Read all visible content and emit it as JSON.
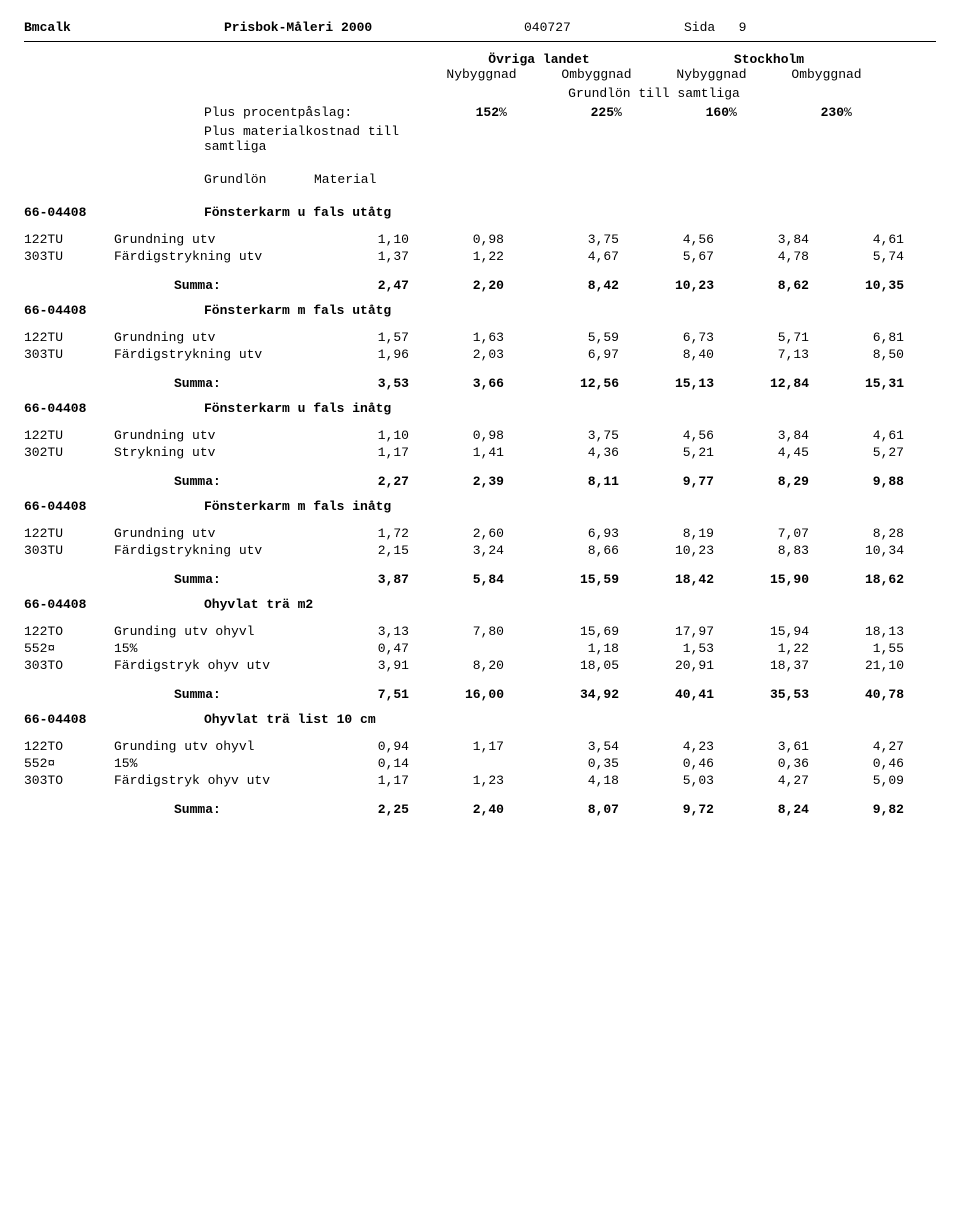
{
  "header": {
    "left": "Bmcalk",
    "center": "Prisbok-Måleri 2000",
    "date": "040727",
    "page_label": "Sida",
    "page_num": "9"
  },
  "subheader": {
    "region_a": "Övriga landet",
    "region_b": "Stockholm",
    "col_ny": "Nybyggnad",
    "col_om": "Ombyggnad",
    "grundlon": "Grundlön till samtliga",
    "perc_label": "Plus procentpåslag:",
    "perc": [
      "152",
      "225",
      "160",
      "230"
    ],
    "perc_sym": "%",
    "material": "Plus materialkostnad till samtliga",
    "gm_g": "Grundlön",
    "gm_m": "Material"
  },
  "sum_label": "Summa:",
  "sections": [
    {
      "code": "66-04408",
      "title": "Fönsterkarm u fals utåtg",
      "rows": [
        {
          "code": "122TU",
          "desc": "Grundning utv",
          "v": [
            "1,10",
            "0,98",
            "3,75",
            "4,56",
            "3,84",
            "4,61"
          ]
        },
        {
          "code": "303TU",
          "desc": "Färdigstrykning utv",
          "v": [
            "1,37",
            "1,22",
            "4,67",
            "5,67",
            "4,78",
            "5,74"
          ]
        }
      ],
      "sum": [
        "2,47",
        "2,20",
        "8,42",
        "10,23",
        "8,62",
        "10,35"
      ]
    },
    {
      "code": "66-04408",
      "title": "Fönsterkarm m fals utåtg",
      "rows": [
        {
          "code": "122TU",
          "desc": "Grundning utv",
          "v": [
            "1,57",
            "1,63",
            "5,59",
            "6,73",
            "5,71",
            "6,81"
          ]
        },
        {
          "code": "303TU",
          "desc": "Färdigstrykning utv",
          "v": [
            "1,96",
            "2,03",
            "6,97",
            "8,40",
            "7,13",
            "8,50"
          ]
        }
      ],
      "sum": [
        "3,53",
        "3,66",
        "12,56",
        "15,13",
        "12,84",
        "15,31"
      ]
    },
    {
      "code": "66-04408",
      "title": "Fönsterkarm u fals inåtg",
      "rows": [
        {
          "code": "122TU",
          "desc": "Grundning utv",
          "v": [
            "1,10",
            "0,98",
            "3,75",
            "4,56",
            "3,84",
            "4,61"
          ]
        },
        {
          "code": "302TU",
          "desc": "Strykning utv",
          "v": [
            "1,17",
            "1,41",
            "4,36",
            "5,21",
            "4,45",
            "5,27"
          ]
        }
      ],
      "sum": [
        "2,27",
        "2,39",
        "8,11",
        "9,77",
        "8,29",
        "9,88"
      ]
    },
    {
      "code": "66-04408",
      "title": "Fönsterkarm m fals inåtg",
      "rows": [
        {
          "code": "122TU",
          "desc": "Grundning utv",
          "v": [
            "1,72",
            "2,60",
            "6,93",
            "8,19",
            "7,07",
            "8,28"
          ]
        },
        {
          "code": "303TU",
          "desc": "Färdigstrykning utv",
          "v": [
            "2,15",
            "3,24",
            "8,66",
            "10,23",
            "8,83",
            "10,34"
          ]
        }
      ],
      "sum": [
        "3,87",
        "5,84",
        "15,59",
        "18,42",
        "15,90",
        "18,62"
      ]
    },
    {
      "code": "66-04408",
      "title": "Ohyvlat trä m2",
      "rows": [
        {
          "code": "122TO",
          "desc": "Grunding utv ohyvl",
          "v": [
            "3,13",
            "7,80",
            "15,69",
            "17,97",
            "15,94",
            "18,13"
          ]
        },
        {
          "code": "552¤",
          "desc": "15%",
          "v": [
            "0,47",
            "",
            "1,18",
            "1,53",
            "1,22",
            "1,55"
          ]
        },
        {
          "code": "303TO",
          "desc": "Färdigstryk ohyv utv",
          "v": [
            "3,91",
            "8,20",
            "18,05",
            "20,91",
            "18,37",
            "21,10"
          ]
        }
      ],
      "sum": [
        "7,51",
        "16,00",
        "34,92",
        "40,41",
        "35,53",
        "40,78"
      ]
    },
    {
      "code": "66-04408",
      "title": "Ohyvlat trä list 10 cm",
      "rows": [
        {
          "code": "122TO",
          "desc": "Grunding utv ohyvl",
          "v": [
            "0,94",
            "1,17",
            "3,54",
            "4,23",
            "3,61",
            "4,27"
          ]
        },
        {
          "code": "552¤",
          "desc": "15%",
          "v": [
            "0,14",
            "",
            "0,35",
            "0,46",
            "0,36",
            "0,46"
          ]
        },
        {
          "code": "303TO",
          "desc": "Färdigstryk ohyv utv",
          "v": [
            "1,17",
            "1,23",
            "4,18",
            "5,03",
            "4,27",
            "5,09"
          ]
        }
      ],
      "sum": [
        "2,25",
        "2,40",
        "8,07",
        "9,72",
        "8,24",
        "9,82"
      ]
    }
  ]
}
